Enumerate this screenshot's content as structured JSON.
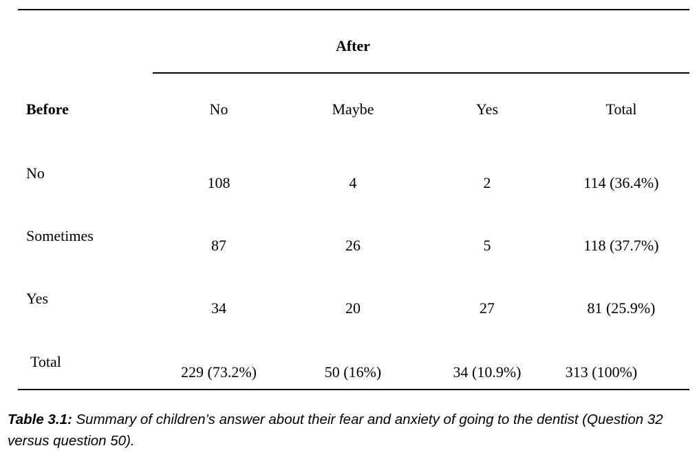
{
  "table": {
    "after_header": "After",
    "before_header": "Before",
    "columns": [
      "No",
      "Maybe",
      "Yes",
      "Total"
    ],
    "rows": [
      {
        "label": "No",
        "cells": [
          "108",
          "4",
          "2",
          "114 (36.4%)"
        ]
      },
      {
        "label": "Sometimes",
        "cells": [
          "87",
          "26",
          "5",
          "118 (37.7%)"
        ]
      },
      {
        "label": "Yes",
        "cells": [
          "34",
          "20",
          "27",
          "81 (25.9%)"
        ]
      },
      {
        "label": "Total",
        "cells": [
          "229 (73.2%)",
          "50 (16%)",
          "34 (10.9%)",
          "313 (100%)"
        ]
      }
    ]
  },
  "caption": {
    "label": "Table 3.1:",
    "text": " Summary of children’s answer about their fear and anxiety of going to the dentist (Question 32 versus question 50)."
  }
}
